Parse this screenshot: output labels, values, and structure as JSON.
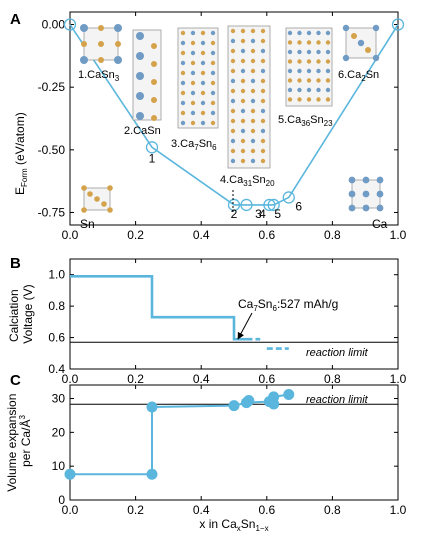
{
  "colors": {
    "series": "#5ab6dd",
    "axis": "#000000",
    "reference": "#000000",
    "sn_atom": "#d4a24a",
    "ca_atom": "#6f9bc4"
  },
  "chart_data": [
    {
      "panel": "A",
      "type": "line",
      "ylabel_main": "E",
      "ylabel_sub": "Form",
      "ylabel_rest": " (eV/atom)",
      "xlim": [
        0,
        1
      ],
      "ylim": [
        -0.8,
        0.05
      ],
      "xticks": [
        "0.0",
        "0.2",
        "0.4",
        "0.6",
        "0.8",
        "1.0"
      ],
      "yticks": [
        "0.00",
        "-0.25",
        "-0.50",
        "-0.75"
      ],
      "hull": {
        "x": [
          0,
          0.25,
          0.5,
          0.538,
          0.608,
          0.621,
          0.667,
          1.0
        ],
        "y": [
          0,
          -0.49,
          -0.72,
          -0.72,
          -0.72,
          -0.72,
          -0.69,
          0
        ]
      },
      "points": [
        {
          "x": 0.0,
          "y": 0.0,
          "label": ""
        },
        {
          "x": 0.25,
          "y": -0.49,
          "label": "1"
        },
        {
          "x": 0.5,
          "y": -0.72,
          "label": "2"
        },
        {
          "x": 0.538,
          "y": -0.72,
          "label": "3"
        },
        {
          "x": 0.608,
          "y": -0.72,
          "label": "4"
        },
        {
          "x": 0.621,
          "y": -0.72,
          "label": "5"
        },
        {
          "x": 0.667,
          "y": -0.69,
          "label": "6"
        },
        {
          "x": 1.0,
          "y": 0.0,
          "label": ""
        }
      ],
      "endpoint_labels": {
        "left": "Sn",
        "right": "Ca"
      }
    },
    {
      "panel": "B",
      "type": "line",
      "ylabel_line1": "Calciation",
      "ylabel_line2": "Voltage (V)",
      "xlim": [
        0,
        1
      ],
      "ylim": [
        0.4,
        1.1
      ],
      "xticks": [
        "0.0",
        "0.2",
        "0.4",
        "0.6",
        "0.8",
        "1.0"
      ],
      "yticks": [
        "0.4",
        "0.6",
        "0.8",
        "1.0"
      ],
      "steps": {
        "x": [
          0,
          0.25,
          0.25,
          0.5,
          0.5,
          0.538
        ],
        "y": [
          0.99,
          0.99,
          0.73,
          0.73,
          0.59,
          0.59
        ]
      },
      "dashed_steps": [
        {
          "x": [
            0.538,
            0.58
          ],
          "y": [
            0.59,
            0.59
          ]
        },
        {
          "x": [
            0.6,
            0.667
          ],
          "y": [
            0.53,
            0.53
          ]
        }
      ],
      "reaction_limit": 0.57,
      "reaction_limit_label": "reaction limit",
      "annotation": {
        "pre": "Ca",
        "sub1": "7",
        "mid": "Sn",
        "sub2": "6",
        "post": ":527 mAh/g"
      }
    },
    {
      "panel": "C",
      "type": "line",
      "ylabel_line1": "Volume expansion",
      "ylabel_line2": "per Ca/Å",
      "ylabel_sup": "3",
      "xlabel_pre": "x in Ca",
      "xlabel_sub1": "x",
      "xlabel_mid": "Sn",
      "xlabel_sub2": "1−x",
      "xlim": [
        0,
        1
      ],
      "ylim": [
        0,
        34
      ],
      "xticks": [
        "0.0",
        "0.2",
        "0.4",
        "0.6",
        "0.8",
        "1.0"
      ],
      "yticks": [
        "0",
        "10",
        "20",
        "30"
      ],
      "steps": {
        "x": [
          0,
          0.25,
          0.25,
          0.5,
          0.538,
          0.608,
          0.621,
          0.667
        ],
        "y": [
          7.6,
          7.6,
          27.5,
          27.9,
          28.8,
          29.1,
          30.5,
          31.2
        ]
      },
      "points": [
        {
          "x": 0.0,
          "y": 7.6
        },
        {
          "x": 0.25,
          "y": 7.6
        },
        {
          "x": 0.25,
          "y": 27.5
        },
        {
          "x": 0.5,
          "y": 27.9
        },
        {
          "x": 0.538,
          "y": 28.8
        },
        {
          "x": 0.545,
          "y": 29.4
        },
        {
          "x": 0.608,
          "y": 29.1
        },
        {
          "x": 0.621,
          "y": 30.5
        },
        {
          "x": 0.621,
          "y": 28.4
        },
        {
          "x": 0.667,
          "y": 31.2
        }
      ],
      "reaction_limit": 28.3,
      "reaction_limit_label": "reaction limit"
    }
  ],
  "structures": [
    {
      "id": "1",
      "name_pre": "1.CaSn",
      "name_sub": "3",
      "name_mid": "",
      "name_sub2": ""
    },
    {
      "id": "2",
      "name_pre": "2.CaSn",
      "name_sub": "",
      "name_mid": "",
      "name_sub2": ""
    },
    {
      "id": "3",
      "name_pre": "3.Ca",
      "name_sub": "7",
      "name_mid": "Sn",
      "name_sub2": "6"
    },
    {
      "id": "4",
      "name_pre": "4.Ca",
      "name_sub": "31",
      "name_mid": "Sn",
      "name_sub2": "20"
    },
    {
      "id": "5",
      "name_pre": "5.Ca",
      "name_sub": "36",
      "name_mid": "Sn",
      "name_sub2": "23"
    },
    {
      "id": "6",
      "name_pre": "6.Ca",
      "name_sub": "2",
      "name_mid": "Sn",
      "name_sub2": ""
    }
  ]
}
